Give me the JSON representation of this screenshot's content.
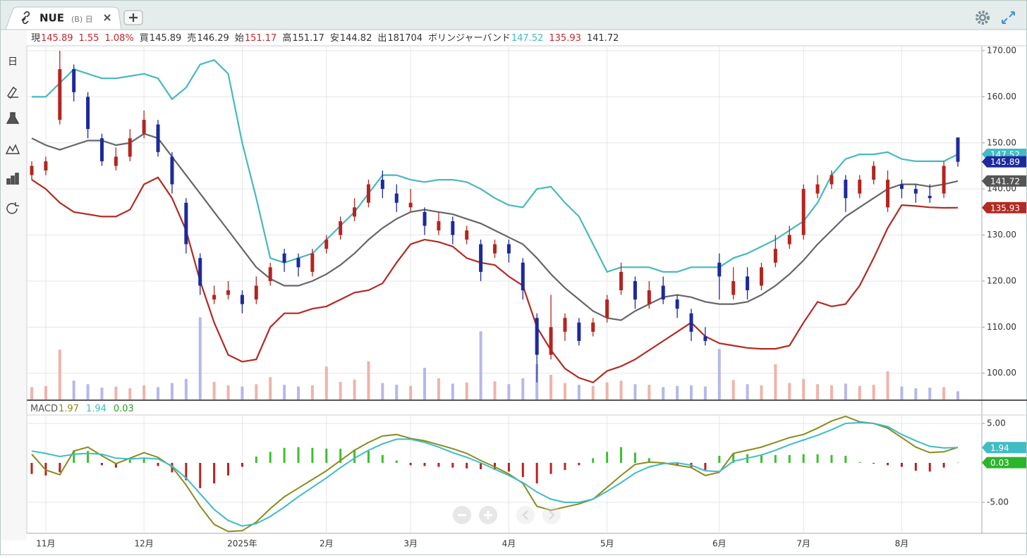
{
  "header": {
    "tab": "NUE",
    "tab_sub": "(B) 日"
  },
  "toolbar": {
    "period": "日"
  },
  "quote": [
    {
      "text": "現",
      "color": "#333"
    },
    {
      "text": "145.89",
      "color": "#c0282d"
    },
    {
      "text": "1.55",
      "color": "#c0282d"
    },
    {
      "text": "1.08%",
      "color": "#c0282d"
    },
    {
      "text": "買",
      "color": "#333"
    },
    {
      "text": "145.89",
      "color": "#333"
    },
    {
      "text": "売",
      "color": "#333"
    },
    {
      "text": "146.29",
      "color": "#333"
    },
    {
      "text": "始",
      "color": "#333"
    },
    {
      "text": "151.17",
      "color": "#c0282d"
    },
    {
      "text": "高",
      "color": "#333"
    },
    {
      "text": "151.17",
      "color": "#333"
    },
    {
      "text": "安",
      "color": "#333"
    },
    {
      "text": "144.82",
      "color": "#333"
    },
    {
      "text": "出",
      "color": "#333"
    },
    {
      "text": "181704",
      "color": "#333"
    },
    {
      "text": "ボリンジャーバンド",
      "color": "#333"
    },
    {
      "text": "147.52",
      "color": "#3fbcc4"
    },
    {
      "text": "135.93",
      "color": "#c0282d"
    },
    {
      "text": "141.72",
      "color": "#333"
    }
  ],
  "chart_data": [
    {
      "type": "candlestick",
      "categories": [
        null,
        "11月",
        null,
        null,
        null,
        null,
        null,
        null,
        "12月",
        null,
        null,
        null,
        null,
        null,
        null,
        "2025年",
        null,
        null,
        null,
        null,
        null,
        "2月",
        null,
        null,
        null,
        null,
        null,
        "3月",
        null,
        null,
        null,
        null,
        null,
        null,
        "4月",
        null,
        null,
        null,
        null,
        null,
        null,
        "5月",
        null,
        null,
        null,
        null,
        null,
        null,
        null,
        "6月",
        null,
        null,
        null,
        null,
        null,
        "7月",
        null,
        null,
        null,
        null,
        null,
        null,
        "8月",
        null,
        null,
        null,
        null
      ],
      "open": [
        143,
        144,
        155,
        166,
        160,
        151,
        145,
        147,
        152,
        154,
        147,
        137,
        125,
        116,
        117,
        117,
        116,
        120,
        126,
        125,
        122,
        127,
        130,
        134,
        137,
        142,
        139,
        136,
        135,
        131,
        133,
        129,
        128,
        126,
        128,
        124,
        112,
        104,
        109,
        111,
        109,
        112,
        118,
        120,
        115,
        119,
        116,
        113,
        108,
        124,
        117,
        121,
        119,
        124,
        128,
        130,
        139,
        141,
        142,
        139,
        142,
        136,
        141,
        140,
        138.5,
        139,
        151.17
      ],
      "high": [
        146,
        147,
        170,
        167,
        161,
        152,
        149,
        153,
        157,
        155,
        148,
        138,
        126,
        119,
        120,
        118,
        121,
        124,
        127,
        126,
        127,
        130,
        134,
        138,
        142,
        144,
        141,
        140,
        136,
        135,
        134,
        132,
        129,
        129,
        129,
        125,
        113,
        117,
        113,
        112,
        112,
        117,
        124,
        121,
        120,
        121,
        117,
        114,
        110,
        126,
        123,
        123,
        124,
        130,
        132,
        141,
        143,
        144,
        143,
        143,
        146,
        144,
        142,
        141,
        141,
        146,
        151.17
      ],
      "low": [
        142,
        143,
        154,
        159,
        151,
        145,
        144,
        146,
        151,
        147,
        139,
        126,
        117,
        115,
        116,
        113,
        115,
        119,
        122,
        121,
        121,
        126,
        129,
        133,
        136,
        138,
        135,
        135,
        130,
        130,
        128,
        128,
        120,
        125,
        124,
        116,
        98,
        103,
        107,
        106,
        108,
        111,
        117,
        114,
        114,
        115,
        112,
        107,
        106,
        116,
        116,
        116,
        118,
        123,
        127,
        129,
        138,
        140,
        135,
        138,
        141,
        135,
        138,
        137,
        137,
        138,
        144.82
      ],
      "close": [
        145,
        146,
        166,
        161,
        153,
        146,
        147,
        151,
        155,
        148,
        141,
        128,
        119,
        117,
        118,
        115,
        119,
        123,
        124,
        123,
        126,
        129,
        133,
        136,
        141,
        140,
        137,
        137,
        132,
        133,
        130,
        131,
        122,
        128,
        126,
        118,
        104,
        110,
        112,
        107,
        111,
        116,
        122,
        116,
        118,
        116,
        114,
        109,
        107,
        121,
        120,
        118,
        123,
        127,
        130,
        140,
        141,
        143,
        138,
        142,
        145,
        142,
        140,
        139,
        138,
        145,
        145.89
      ],
      "up_color": "#b5241f",
      "down_color": "#1d2a9c",
      "bollinger": {
        "upper": [
          160,
          160,
          163,
          166,
          165,
          164,
          164,
          164.5,
          165,
          164,
          159.5,
          162,
          167,
          168,
          165,
          150,
          138,
          125,
          124,
          125,
          126,
          129,
          132,
          135,
          139,
          143,
          143,
          142,
          141.5,
          142,
          142,
          141.5,
          140,
          138,
          136.5,
          136,
          140,
          140.5,
          137,
          134,
          128,
          122,
          123,
          123,
          123,
          122,
          122,
          123,
          123,
          123,
          125,
          126,
          127.5,
          129,
          131,
          133,
          137,
          143,
          146.5,
          147.5,
          147.5,
          148,
          146.5,
          146,
          146,
          146,
          147.52
        ],
        "middle": [
          151,
          149.5,
          148.5,
          149.5,
          150.5,
          150.5,
          149.5,
          150,
          152,
          151,
          147,
          143,
          139,
          135,
          131,
          127,
          123,
          120.5,
          119,
          119,
          120,
          121.5,
          123.5,
          126,
          129,
          131.5,
          133.5,
          135,
          135.5,
          135,
          134.5,
          133.5,
          132.5,
          131,
          129.5,
          128,
          125,
          121.5,
          118.5,
          116,
          113.5,
          112,
          111.5,
          113.5,
          115,
          116.5,
          117,
          116.5,
          115.5,
          115,
          115,
          115.5,
          117,
          119,
          121.5,
          124.5,
          128,
          131,
          134,
          136,
          138,
          140,
          141,
          141,
          140.5,
          141,
          141.72
        ],
        "lower": [
          142,
          140,
          137,
          135,
          134.5,
          134,
          134,
          135.5,
          141,
          142.5,
          138,
          131,
          120,
          111,
          104,
          102.5,
          103,
          110,
          113,
          113,
          114,
          114.5,
          116,
          117.5,
          118,
          119.5,
          124,
          128,
          129,
          128.5,
          127.5,
          125,
          124,
          123.5,
          121,
          119,
          110,
          105,
          101,
          99,
          98,
          100.5,
          101.5,
          103,
          105,
          107,
          109,
          111,
          108,
          106.5,
          106,
          105.5,
          105.3,
          105.3,
          106,
          111,
          115.5,
          114.5,
          115,
          119,
          125,
          131.5,
          136.5,
          136.3,
          136,
          135.9,
          135.93
        ],
        "colors": [
          "#45b9bf",
          "#666666",
          "#b22a22"
        ]
      },
      "volume": {
        "values": [
          2100000,
          2300000,
          8500000,
          3200000,
          2600000,
          2000000,
          2200000,
          1900000,
          2400000,
          2100000,
          2800000,
          3500000,
          14000000,
          3000000,
          2400000,
          2200000,
          2600000,
          3800000,
          2500000,
          2200000,
          2400000,
          5600000,
          3000000,
          3400000,
          6500000,
          2800000,
          2500000,
          2300000,
          5400000,
          3600000,
          2700000,
          2900000,
          11600000,
          3100000,
          2600000,
          3600000,
          6000000,
          4200000,
          2800000,
          2500000,
          2300000,
          2900000,
          3200000,
          2600000,
          2500000,
          2100000,
          2300000,
          2400000,
          2200000,
          8600000,
          3300000,
          2600000,
          2400000,
          6000000,
          2800000,
          3500000,
          2600000,
          2400000,
          2700000,
          2300000,
          2500000,
          4800000,
          2200000,
          1900000,
          2000000,
          2100000,
          1400000
        ],
        "vlim": [
          0,
          15000000
        ],
        "up_color": "#efb3ab",
        "down_color": "#b7b7ea"
      },
      "ylim": [
        94.3,
        171.07
      ],
      "yticks": [
        {
          "value": 100,
          "label": "100.00"
        },
        {
          "value": 110,
          "label": "110.00"
        },
        {
          "value": 120,
          "label": "120.00"
        },
        {
          "value": 130,
          "label": "130.00"
        },
        {
          "value": 140,
          "label": "140.00"
        },
        {
          "value": 150,
          "label": "150.00"
        },
        {
          "value": 160,
          "label": "160.00"
        },
        {
          "value": 170,
          "label": "170.00"
        }
      ],
      "grid": true,
      "tags": [
        147.52,
        145.89,
        141.72,
        135.93
      ],
      "tag_colors": [
        "#3fbcc4",
        "#1d2a9c",
        "#555555",
        "#b22a22"
      ]
    },
    {
      "type": "macd",
      "title": "MACD",
      "series": [
        {
          "color": "#8b8b1e",
          "values": [
            1.1,
            -0.9,
            -1.5,
            1.5,
            2.0,
            0.9,
            -0.1,
            0.6,
            1.3,
            0.7,
            -0.5,
            -2.8,
            -5.5,
            -7.8,
            -8.7,
            -8.6,
            -7.5,
            -5.8,
            -4.3,
            -3.2,
            -2.1,
            -1.0,
            0.3,
            1.6,
            2.6,
            3.4,
            3.6,
            3.1,
            2.8,
            2.3,
            1.8,
            1.2,
            0.3,
            -0.5,
            -1.4,
            -2.6,
            -5.5,
            -6.0,
            -5.6,
            -5.2,
            -4.6,
            -3.1,
            -1.6,
            -0.2,
            0.1,
            0.0,
            -0.3,
            -0.6,
            -1.6,
            -1.2,
            1.2,
            1.6,
            2.0,
            2.6,
            3.2,
            3.6,
            4.4,
            5.3,
            5.9,
            5.2,
            5.0,
            4.4,
            3.2,
            2.0,
            1.3,
            1.4,
            1.97
          ]
        },
        {
          "color": "#3fbcc4",
          "values": [
            1.5,
            1.2,
            0.8,
            1.1,
            1.2,
            1.1,
            0.6,
            0.5,
            0.6,
            0.5,
            -0.4,
            -1.9,
            -3.9,
            -5.9,
            -7.3,
            -8.0,
            -7.7,
            -6.8,
            -5.6,
            -4.3,
            -3.1,
            -1.9,
            -0.6,
            0.6,
            1.6,
            2.4,
            3.0,
            3.0,
            2.6,
            2.0,
            1.3,
            0.7,
            0.0,
            -0.8,
            -1.6,
            -2.5,
            -3.7,
            -4.6,
            -5.0,
            -5.0,
            -4.6,
            -3.6,
            -2.5,
            -1.3,
            -0.5,
            -0.1,
            0.0,
            -0.3,
            -1.0,
            -1.1,
            0.2,
            0.6,
            1.0,
            1.6,
            2.3,
            2.9,
            3.5,
            4.2,
            5.0,
            5.1,
            5.0,
            4.6,
            3.6,
            2.8,
            2.1,
            1.9,
            1.94
          ]
        }
      ],
      "histogram": {
        "values": [
          -1.4,
          -1.6,
          -1.2,
          1.6,
          1.5,
          -0.3,
          -0.6,
          0.4,
          0.5,
          -0.4,
          -1.2,
          -2.2,
          -3.2,
          -2.6,
          -1.6,
          -0.5,
          0.8,
          1.4,
          1.9,
          2.0,
          1.9,
          1.8,
          1.8,
          1.7,
          1.5,
          1.0,
          0.3,
          -0.3,
          -0.4,
          -0.5,
          -0.6,
          -0.7,
          -0.8,
          -0.9,
          -1.1,
          -1.8,
          -2.6,
          -1.4,
          -0.9,
          -0.3,
          0.6,
          1.4,
          2.0,
          1.3,
          0.6,
          0.1,
          -0.4,
          -0.6,
          -0.9,
          0.9,
          1.2,
          1.1,
          1.0,
          1.0,
          1.0,
          1.1,
          1.1,
          1.0,
          0.9,
          0.1,
          -0.1,
          -0.3,
          -0.5,
          -1.0,
          -1.1,
          -0.6,
          0.03
        ],
        "up_color": "#3cc02c",
        "down_color": "#b82222"
      },
      "legend_values": [
        1.97,
        1.94,
        0.03
      ],
      "legend_colors": [
        "#8b8b1e",
        "#3fbcc4",
        "#2aa02a"
      ],
      "ylim": [
        -8.93,
        5.98
      ],
      "yticks": [
        {
          "value": 5,
          "label": "5.00"
        },
        {
          "value": -5,
          "label": "-5.00"
        }
      ],
      "grid": true,
      "tags": [
        1.94,
        0.03
      ],
      "tag_colors": [
        "#3fbcc4",
        "#2bb52b"
      ]
    }
  ]
}
